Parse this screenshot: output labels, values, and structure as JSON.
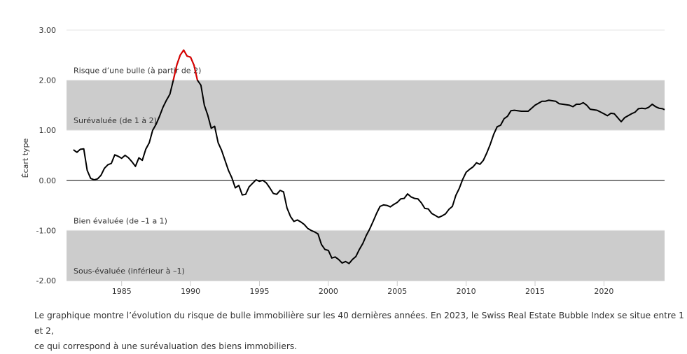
{
  "chart_data": {
    "type": "line",
    "ylabel": "Écart type",
    "xlabel": "",
    "ylim": [
      -2,
      3
    ],
    "xlim": [
      1981,
      2024.4
    ],
    "y_ticks": [
      {
        "value": 3,
        "label": "3.00"
      },
      {
        "value": 2,
        "label": "2.00"
      },
      {
        "value": 1,
        "label": "1.00"
      },
      {
        "value": 0,
        "label": "0.00"
      },
      {
        "value": -1,
        "label": "-1.00"
      },
      {
        "value": -2,
        "label": "-2.00"
      }
    ],
    "x_ticks": [
      {
        "value": 1985,
        "label": "1985"
      },
      {
        "value": 1990,
        "label": "1990"
      },
      {
        "value": 1995,
        "label": "1995"
      },
      {
        "value": 2000,
        "label": "2000"
      },
      {
        "value": 2005,
        "label": "2005"
      },
      {
        "value": 2010,
        "label": "2010"
      },
      {
        "value": 2015,
        "label": "2015"
      },
      {
        "value": 2020,
        "label": "2020"
      }
    ],
    "bands": [
      {
        "from": 1,
        "to": 2,
        "color": "#cccccc"
      },
      {
        "from": -2,
        "to": -1,
        "color": "#cccccc"
      }
    ],
    "band_labels": [
      {
        "value": 2,
        "text": "Risque d’une bulle (à partir de 2)"
      },
      {
        "value": 1,
        "text": "Surévaluée (de 1 à 2)"
      },
      {
        "value": -1,
        "text": "Bien évaluée (de –1 a 1)"
      },
      {
        "value": -2,
        "text": "Sous-évaluée (inférieur à –1)"
      }
    ],
    "line_color": "#000000",
    "bubble_color": "#e00000",
    "bubble_threshold": 2,
    "grid": false,
    "x": [
      1981.5,
      1981.75,
      1982,
      1982.25,
      1982.5,
      1982.75,
      1983,
      1983.25,
      1983.5,
      1983.75,
      1984,
      1984.25,
      1984.5,
      1984.75,
      1985,
      1985.25,
      1985.5,
      1985.75,
      1986,
      1986.25,
      1986.5,
      1986.75,
      1987,
      1987.25,
      1987.5,
      1987.75,
      1988,
      1988.25,
      1988.5,
      1988.75,
      1989,
      1989.25,
      1989.5,
      1989.75,
      1990,
      1990.25,
      1990.5,
      1990.75,
      1991,
      1991.25,
      1991.5,
      1991.75,
      1992,
      1992.25,
      1992.5,
      1992.75,
      1993,
      1993.25,
      1993.5,
      1993.75,
      1994,
      1994.25,
      1994.5,
      1994.75,
      1995,
      1995.25,
      1995.5,
      1995.75,
      1996,
      1996.25,
      1996.5,
      1996.75,
      1997,
      1997.25,
      1997.5,
      1997.75,
      1998,
      1998.25,
      1998.5,
      1998.75,
      1999,
      1999.25,
      1999.5,
      1999.75,
      2000,
      2000.25,
      2000.5,
      2000.75,
      2001,
      2001.25,
      2001.5,
      2001.75,
      2002,
      2002.25,
      2002.5,
      2002.75,
      2003,
      2003.25,
      2003.5,
      2003.75,
      2004,
      2004.25,
      2004.5,
      2004.75,
      2005,
      2005.25,
      2005.5,
      2005.75,
      2006,
      2006.25,
      2006.5,
      2006.75,
      2007,
      2007.25,
      2007.5,
      2007.75,
      2008,
      2008.25,
      2008.5,
      2008.75,
      2009,
      2009.25,
      2009.5,
      2009.75,
      2010,
      2010.25,
      2010.5,
      2010.75,
      2011,
      2011.25,
      2011.5,
      2011.75,
      2012,
      2012.25,
      2012.5,
      2012.75,
      2013,
      2013.25,
      2013.5,
      2014,
      2014.5,
      2015,
      2015.5,
      2015.75,
      2016,
      2016.5,
      2016.75,
      2017.5,
      2017.75,
      2018,
      2018.25,
      2018.5,
      2018.75,
      2019,
      2019.5,
      2020,
      2020.25,
      2020.5,
      2020.75,
      2021.25,
      2021.5,
      2022,
      2022.25,
      2022.5,
      2022.75,
      2023,
      2023.25,
      2023.5,
      2023.75,
      2024,
      2024.25,
      2024.4
    ],
    "values": [
      0.61,
      0.56,
      0.62,
      0.63,
      0.2,
      0.04,
      0.01,
      0.03,
      0.1,
      0.24,
      0.31,
      0.34,
      0.51,
      0.48,
      0.44,
      0.5,
      0.45,
      0.37,
      0.28,
      0.45,
      0.4,
      0.62,
      0.75,
      1.0,
      1.12,
      1.28,
      1.46,
      1.6,
      1.72,
      2.0,
      2.3,
      2.5,
      2.6,
      2.48,
      2.46,
      2.3,
      2.0,
      1.9,
      1.5,
      1.3,
      1.04,
      1.08,
      0.75,
      0.6,
      0.4,
      0.2,
      0.05,
      -0.15,
      -0.1,
      -0.29,
      -0.28,
      -0.13,
      -0.06,
      0.01,
      -0.02,
      0.0,
      -0.05,
      -0.15,
      -0.26,
      -0.28,
      -0.2,
      -0.23,
      -0.55,
      -0.72,
      -0.82,
      -0.79,
      -0.83,
      -0.88,
      -0.96,
      -1.0,
      -1.03,
      -1.07,
      -1.28,
      -1.38,
      -1.4,
      -1.55,
      -1.53,
      -1.58,
      -1.65,
      -1.62,
      -1.66,
      -1.58,
      -1.52,
      -1.38,
      -1.26,
      -1.1,
      -0.97,
      -0.82,
      -0.66,
      -0.52,
      -0.49,
      -0.5,
      -0.53,
      -0.48,
      -0.44,
      -0.37,
      -0.36,
      -0.27,
      -0.33,
      -0.36,
      -0.37,
      -0.45,
      -0.56,
      -0.57,
      -0.66,
      -0.7,
      -0.74,
      -0.71,
      -0.67,
      -0.58,
      -0.52,
      -0.3,
      -0.16,
      0.02,
      0.16,
      0.22,
      0.27,
      0.35,
      0.32,
      0.4,
      0.55,
      0.72,
      0.92,
      1.07,
      1.1,
      1.23,
      1.28,
      1.39,
      1.4,
      1.38,
      1.38,
      1.5,
      1.58,
      1.58,
      1.6,
      1.58,
      1.53,
      1.5,
      1.47,
      1.52,
      1.52,
      1.55,
      1.5,
      1.42,
      1.4,
      1.33,
      1.29,
      1.34,
      1.33,
      1.17,
      1.25,
      1.33,
      1.36,
      1.43,
      1.44,
      1.43,
      1.46,
      1.52,
      1.47,
      1.44,
      1.43,
      1.41
    ]
  },
  "caption": {
    "line1": "Le graphique montre l’évolution du risque de bulle immobilière sur les 40 dernières années. En 2023, le Swiss Real Estate Bubble Index se situe entre 1 et 2,",
    "line2": "ce qui correspond à une surévaluation des biens immobiliers."
  }
}
